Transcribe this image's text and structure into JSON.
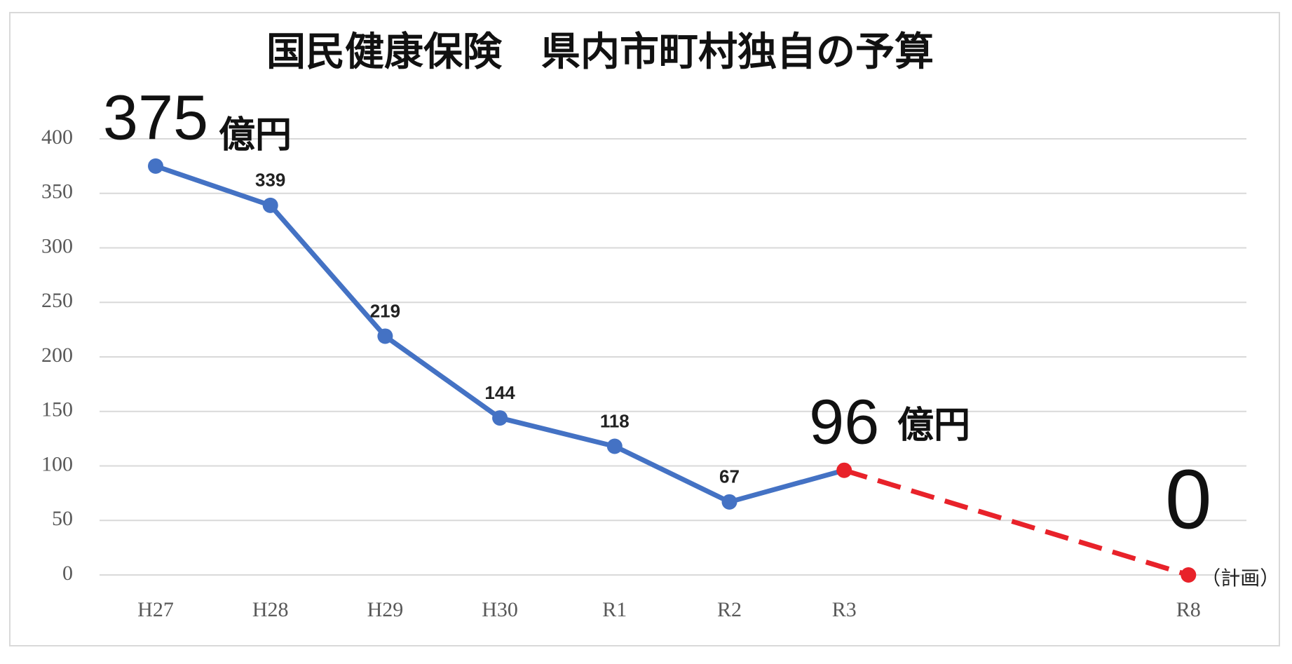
{
  "chart_data": {
    "type": "line",
    "title": "国民健康保険　県内市町村独自の予算",
    "categories": [
      "H27",
      "H28",
      "H29",
      "H30",
      "R1",
      "R2",
      "R3",
      null,
      null,
      "R8"
    ],
    "series": [
      {
        "color": "#4472c4",
        "values": [
          375,
          339,
          219,
          144,
          118,
          67,
          96,
          null,
          null,
          null
        ]
      },
      {
        "color": "#e8222a",
        "dashed": true,
        "values": [
          null,
          null,
          null,
          null,
          null,
          null,
          96,
          null,
          null,
          0
        ]
      }
    ],
    "annotations": [
      "億円",
      "億円",
      "（計画）"
    ],
    "ylim": [
      0,
      400
    ],
    "yticks": [
      0,
      50,
      100,
      150,
      200,
      250,
      300,
      350,
      400
    ],
    "grid": true
  }
}
